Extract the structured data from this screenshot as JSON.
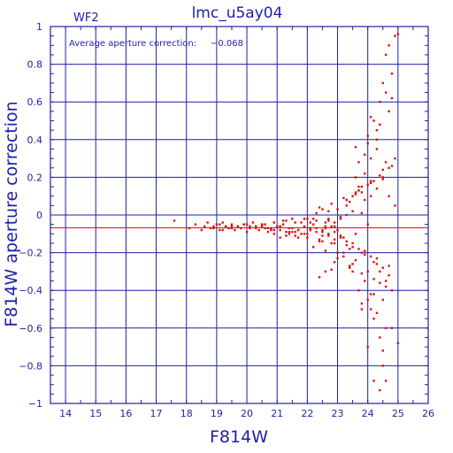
{
  "chart_data": {
    "type": "scatter",
    "title": "lmc_u5ay04",
    "panel_label": "WF2",
    "xlabel": "F814W",
    "ylabel": "F814W aperture correction",
    "annotation_label": "Average aperture correction:",
    "annotation_value": "−0.068",
    "reference_line_y": -0.068,
    "xlim": [
      13.5,
      26
    ],
    "ylim": [
      -1,
      1
    ],
    "x_ticks": [
      "14",
      "15",
      "16",
      "17",
      "18",
      "19",
      "20",
      "21",
      "22",
      "23",
      "24",
      "25",
      "26"
    ],
    "y_ticks": [
      "1",
      "0.8",
      "0.6",
      "0.4",
      "0.2",
      "0",
      "−0.2",
      "−0.4",
      "−0.6",
      "−0.8",
      "−1"
    ],
    "grid": true,
    "colors": {
      "axes": "#1f1fa8",
      "points": "#e01010",
      "line": "#e01010"
    },
    "series": [
      {
        "x": [
          17.6,
          18.1,
          18.3,
          18.5,
          18.6,
          18.7,
          18.8,
          18.9,
          19.0,
          19.1,
          19.2,
          19.3,
          19.4,
          19.5,
          19.6,
          19.7,
          19.8,
          19.9,
          20.0,
          20.1,
          20.2,
          20.3,
          20.4,
          20.5,
          20.6,
          20.7,
          20.8,
          20.9,
          21.0,
          21.1,
          21.2,
          21.3,
          21.4,
          21.5,
          21.6,
          21.7,
          21.8,
          21.9,
          22.0,
          22.1,
          22.2,
          22.3,
          22.4,
          22.5,
          22.6,
          22.7,
          22.8,
          22.9,
          23.0,
          23.1,
          23.2,
          23.3,
          23.4,
          23.5,
          23.6,
          23.7,
          23.8,
          23.9,
          24.0,
          24.1,
          24.2,
          24.3,
          24.4,
          24.5,
          24.6,
          24.7,
          24.8,
          24.9,
          21.2,
          21.5,
          21.8,
          22.0,
          22.3,
          22.5,
          22.7,
          22.9,
          23.1,
          23.3,
          23.5,
          23.7,
          23.9,
          24.1,
          24.3,
          24.5,
          24.7,
          21.4,
          21.7,
          22.1,
          22.4,
          22.6,
          22.8,
          23.0,
          23.2,
          23.4,
          23.6,
          23.8,
          24.0,
          24.2,
          24.4,
          24.6,
          20.5,
          20.9,
          21.3,
          21.6,
          22.2,
          22.6,
          22.9,
          23.3,
          23.5,
          23.8,
          24.1,
          24.3,
          24.5,
          24.7,
          24.8,
          24.2,
          24.3,
          24.6,
          24.5,
          24.4,
          24.1,
          24.0,
          23.9,
          23.7,
          23.6,
          24.2,
          24.4,
          23.8,
          24.0,
          24.6,
          24.5,
          24.3,
          24.1,
          23.9,
          24.8,
          24.7,
          24.9,
          25.0,
          24.4,
          24.2,
          23.5,
          23.4,
          23.2,
          22.8,
          22.6,
          22.4,
          22.9,
          23.0,
          23.3,
          23.7,
          24.0,
          24.5,
          24.6,
          24.1,
          23.8,
          23.6,
          22.7,
          22.5,
          22.3,
          22.1,
          21.9,
          21.6,
          21.4,
          21.1,
          20.8,
          20.6,
          20.3,
          20.0,
          19.8,
          19.5,
          19.2,
          18.9,
          22.0,
          22.2,
          22.4,
          22.6,
          22.8,
          23.0,
          23.2,
          23.4,
          23.6,
          23.8,
          24.0,
          24.2,
          24.4,
          24.6,
          24.8,
          23.1,
          23.3,
          23.5,
          23.7,
          23.9,
          24.1,
          24.3,
          24.5,
          24.7,
          22.9,
          22.7,
          22.5,
          24.0,
          24.2,
          24.4,
          23.8,
          23.6,
          24.6,
          24.8,
          25.0,
          24.9,
          24.7,
          24.5,
          24.3,
          24.1,
          23.9,
          23.7,
          23.5,
          23.3,
          23.1,
          22.9,
          22.7,
          22.5,
          22.3,
          22.1,
          21.9,
          21.7,
          21.5,
          21.3,
          21.1,
          20.9,
          20.7,
          20.5,
          20.3,
          20.1,
          19.9,
          19.7,
          19.5,
          19.3,
          19.1
        ],
        "y": [
          -0.03,
          -0.07,
          -0.05,
          -0.08,
          -0.06,
          -0.04,
          -0.07,
          -0.06,
          -0.05,
          -0.08,
          -0.04,
          -0.06,
          -0.07,
          -0.05,
          -0.08,
          -0.06,
          -0.07,
          -0.05,
          -0.09,
          -0.06,
          -0.04,
          -0.07,
          -0.08,
          -0.06,
          -0.05,
          -0.09,
          -0.07,
          -0.1,
          -0.06,
          -0.08,
          -0.05,
          -0.11,
          -0.07,
          -0.09,
          -0.04,
          -0.08,
          -0.1,
          -0.06,
          -0.12,
          -0.07,
          -0.05,
          -0.09,
          -0.13,
          -0.08,
          -0.04,
          -0.11,
          -0.06,
          -0.15,
          -0.08,
          -0.02,
          -0.12,
          0.05,
          -0.18,
          0.1,
          -0.1,
          0.15,
          -0.2,
          0.22,
          -0.05,
          0.3,
          -0.25,
          0.4,
          -0.3,
          0.2,
          -0.35,
          0.1,
          -0.4,
          0.05,
          -0.03,
          -0.02,
          -0.04,
          -0.1,
          -0.03,
          -0.11,
          -0.02,
          -0.13,
          -0.01,
          -0.16,
          0.02,
          -0.18,
          0.08,
          -0.22,
          0.14,
          -0.28,
          0.25,
          -0.09,
          -0.12,
          -0.08,
          -0.14,
          -0.06,
          -0.15,
          0.03,
          -0.2,
          0.07,
          -0.24,
          0.12,
          -0.3,
          0.18,
          -0.36,
          0.28,
          -0.05,
          -0.04,
          -0.03,
          -0.11,
          -0.02,
          -0.07,
          -0.09,
          0.0,
          -0.26,
          0.01,
          -0.5,
          0.35,
          -0.45,
          0.55,
          -0.6,
          0.5,
          0.45,
          0.65,
          0.7,
          0.6,
          0.52,
          0.38,
          0.32,
          0.28,
          0.2,
          -0.55,
          -0.65,
          -0.5,
          -0.7,
          -0.6,
          -0.72,
          -0.52,
          -0.42,
          -0.35,
          0.62,
          0.9,
          0.95,
          0.96,
          -0.93,
          -0.88,
          -0.3,
          -0.28,
          -0.22,
          -0.29,
          -0.3,
          -0.33,
          -0.25,
          -0.2,
          -0.14,
          -0.4,
          -0.45,
          -0.8,
          -0.88,
          0.1,
          0.15,
          0.12,
          0.02,
          0.03,
          0.01,
          -0.04,
          -0.02,
          -0.09,
          -0.1,
          -0.12,
          -0.08,
          -0.07,
          -0.06,
          -0.05,
          -0.07,
          -0.06,
          -0.08,
          -0.07,
          -0.02,
          -0.17,
          0.04,
          -0.19,
          0.06,
          -0.23,
          0.09,
          -0.27,
          0.11,
          -0.31,
          0.16,
          -0.34,
          0.21,
          -0.38,
          0.26,
          -0.12,
          0.08,
          -0.15,
          0.13,
          -0.19,
          0.17,
          -0.23,
          0.19,
          -0.27,
          -0.04,
          -0.03,
          -0.14,
          0.42,
          -0.42,
          0.48,
          -0.47,
          0.36,
          0.85,
          0.75,
          -0.68,
          0.3,
          -0.32,
          0.24,
          -0.26,
          0.18,
          -0.21,
          0.13,
          -0.17,
          0.08,
          -0.11,
          -0.06,
          -0.1,
          -0.09,
          -0.07,
          -0.08,
          -0.1,
          -0.08,
          -0.07,
          -0.09,
          -0.06,
          -0.08,
          -0.07,
          -0.05,
          -0.06,
          -0.07,
          -0.05,
          -0.06,
          -0.07,
          -0.06,
          -0.05
        ]
      }
    ]
  }
}
